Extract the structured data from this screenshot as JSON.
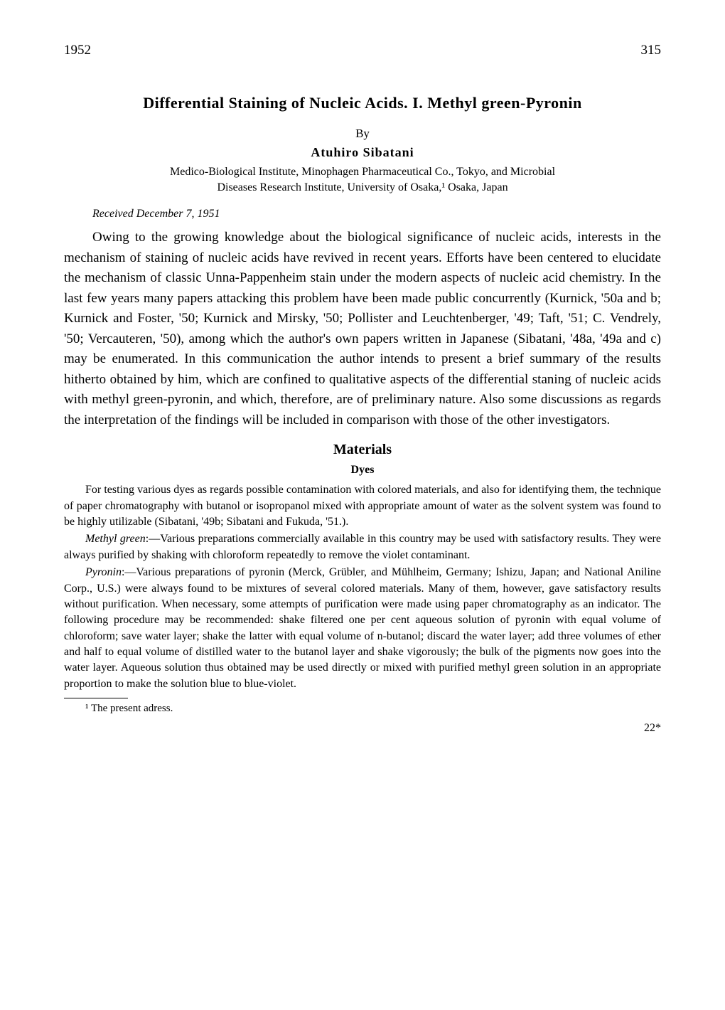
{
  "header": {
    "year": "1952",
    "page_number": "315"
  },
  "title": "Differential Staining of Nucleic Acids.  I.  Methyl green-Pyronin",
  "by": "By",
  "author": "Atuhiro Sibatani",
  "affiliation_line1": "Medico-Biological Institute, Minophagen Pharmaceutical Co., Tokyo, and Microbial",
  "affiliation_line2": "Diseases Research Institute, University of Osaka,¹ Osaka, Japan",
  "received": "Received December 7, 1951",
  "body_paragraph": "Owing to the growing knowledge about the biological significance of nucleic acids, interests in the mechanism of staining of nucleic acids have revived in recent years. Efforts have been centered to elucidate the mechanism of classic Unna-Pappenheim stain under the modern aspects of nucleic acid chemistry. In the last few years many papers attacking this problem have been made public concurrently (Kurnick, '50a and b; Kurnick and Foster, '50; Kurnick and Mirsky, '50; Pollister and Leuchtenberger, '49; Taft, '51; C. Vendrely, '50; Vercauteren, '50), among which the author's own papers written in Japanese (Sibatani, '48a, '49a and c) may be enumerated. In this communication the author intends to present a brief summary of the results hitherto obtained by him, which are confined to qualitative aspects of the differential staning of nucleic acids with methyl green-pyronin, and which, therefore, are of preliminary nature. Also some discussions as regards the interpretation of the findings will be included in comparison with those of the other investigators.",
  "materials_heading": "Materials",
  "dyes_heading": "Dyes",
  "dyes_para1": "For testing various dyes as regards possible contamination with colored materials, and also for identifying them, the technique of paper chromatography with butanol or isopropanol mixed with appropriate amount of water as the solvent system was found to be highly utilizable (Sibatani, '49b; Sibatani and Fukuda, '51.).",
  "methyl_green_lead": "Methyl green",
  "methyl_green_rest": ":—Various preparations commercially available in this country may be used with satisfactory results. They were always purified by shaking with chloroform repeatedly to remove the violet contaminant.",
  "pyronin_lead": "Pyronin",
  "pyronin_rest": ":—Various preparations of pyronin (Merck, Grübler, and Mühlheim, Germany; Ishizu, Japan; and National Aniline Corp., U.S.) were always found to be mixtures of several colored materials. Many of them, however, gave satisfactory results without purification. When necessary, some attempts of purification were made using paper chromatography as an indicator. The following procedure may be recommended: shake filtered one per cent aqueous solution of pyronin with equal volume of chloroform; save water layer; shake the latter with equal volume of n-butanol; discard the water layer; add three volumes of ether and half to equal volume of distilled water to the butanol layer and shake vigorously; the bulk of the pigments now goes into the water layer. Aqueous solution thus obtained may be used directly or mixed with purified methyl green solution in an appropriate proportion to make the solution blue to blue-violet.",
  "footnote": "¹ The present adress.",
  "footer_sig": "22*"
}
